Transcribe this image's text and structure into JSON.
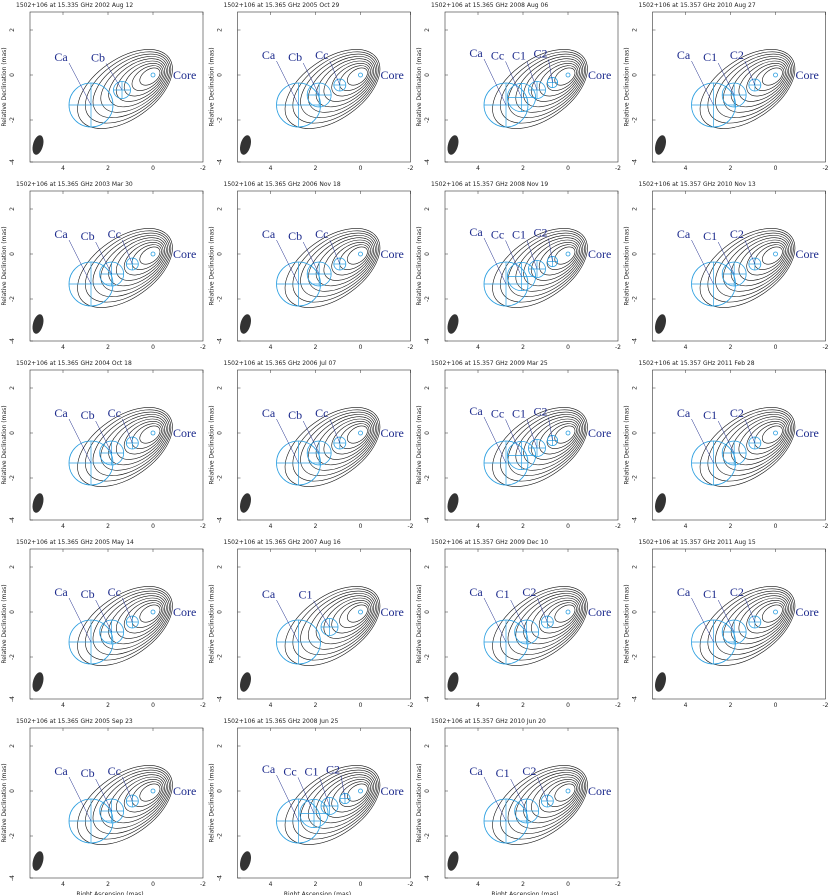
{
  "figure": {
    "y_label": "Relative Declination (mas)",
    "x_label": "Right Ascension (mas)",
    "x_ticks": [
      "4",
      "2",
      "0",
      "-2"
    ],
    "y_ticks": [
      "2",
      "0",
      "-2",
      "-4"
    ],
    "panels": [
      {
        "title": "1502+106 at 15.335 GHz 2002 Aug 12",
        "components": [
          "Ca",
          "Cb",
          "Core"
        ]
      },
      {
        "title": "1502+106 at 15.365 GHz 2005 Oct 29",
        "components": [
          "Ca",
          "Cb",
          "Cc",
          "Core"
        ]
      },
      {
        "title": "1502+106 at 15.365 GHz 2008 Aug 06",
        "components": [
          "Ca",
          "Cc",
          "C1",
          "C2",
          "Core"
        ]
      },
      {
        "title": "1502+106 at 15.357 GHz 2010 Aug 27",
        "components": [
          "Ca",
          "C1",
          "C2",
          "Core"
        ]
      },
      {
        "title": "1502+106 at 15.365 GHz 2003 Mar 30",
        "components": [
          "Ca",
          "Cb",
          "Cc",
          "Core"
        ]
      },
      {
        "title": "1502+106 at 15.365 GHz 2006 Nov 18",
        "components": [
          "Ca",
          "Cb",
          "Cc",
          "Core"
        ]
      },
      {
        "title": "1502+106 at 15.357 GHz 2008 Nov 19",
        "components": [
          "Ca",
          "Cc",
          "C1",
          "C2",
          "Core"
        ]
      },
      {
        "title": "1502+106 at 15.357 GHz 2010 Nov 13",
        "components": [
          "Ca",
          "C1",
          "C2",
          "Core"
        ]
      },
      {
        "title": "1502+106 at 15.365 GHz 2004 Oct 18",
        "components": [
          "Ca",
          "Cb",
          "Cc",
          "Core"
        ]
      },
      {
        "title": "1502+106 at 15.365 GHz 2006 Jul 07",
        "components": [
          "Ca",
          "Cb",
          "Cc",
          "Core"
        ]
      },
      {
        "title": "1502+106 at 15.357 GHz 2009 Mar 25",
        "components": [
          "Ca",
          "Cc",
          "C1",
          "C2",
          "Core"
        ]
      },
      {
        "title": "1502+106 at 15.357 GHz 2011 Feb 28",
        "components": [
          "Ca",
          "C1",
          "C2",
          "Core"
        ]
      },
      {
        "title": "1502+106 at 15.365 GHz 2005 May 14",
        "components": [
          "Ca",
          "Cb",
          "Cc",
          "Core"
        ]
      },
      {
        "title": "1502+106 at 15.365 GHz 2007 Aug 16",
        "components": [
          "Ca",
          "C1",
          "Core"
        ]
      },
      {
        "title": "1502+106 at 15.357 GHz 2009 Dec 10",
        "components": [
          "Ca",
          "C1",
          "C2",
          "Core"
        ]
      },
      {
        "title": "1502+106 at 15.357 GHz 2011 Aug 15",
        "components": [
          "Ca",
          "C1",
          "C2",
          "Core"
        ]
      },
      {
        "title": "1502+106 at 15.365 GHz 2005 Sep 23",
        "components": [
          "Ca",
          "Cb",
          "Cc",
          "Core"
        ]
      },
      {
        "title": "1502+106 at 15.365 GHz 2008 Jun 25",
        "components": [
          "Ca",
          "Cc",
          "C1",
          "C2",
          "Core"
        ]
      },
      {
        "title": "1502+106 at 15.357 GHz 2010 Jun 20",
        "components": [
          "Ca",
          "C1",
          "C2",
          "Core"
        ]
      }
    ]
  }
}
